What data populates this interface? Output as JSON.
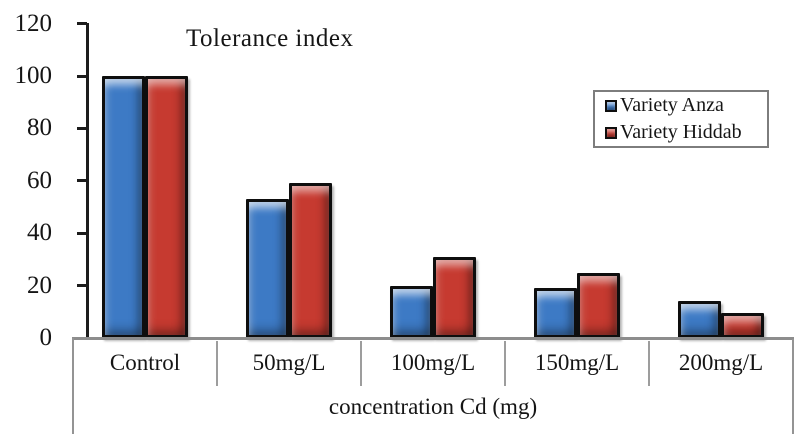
{
  "chart_data": {
    "type": "bar",
    "title": "Tolerance index",
    "xlabel": "concentration Cd (mg)",
    "ylabel": "",
    "categories": [
      "Control",
      "50mg/L",
      "100mg/L",
      "150mg/L",
      "200mg/L"
    ],
    "series": [
      {
        "name": "Variety Anza",
        "color": "#3d7ac5",
        "values": [
          100,
          53,
          20,
          19,
          14
        ]
      },
      {
        "name": "Variety Hiddab",
        "color": "#c63a30",
        "values": [
          100,
          59,
          31,
          25,
          9.5
        ]
      }
    ],
    "ylim": [
      0,
      120
    ],
    "yticks": [
      0,
      20,
      40,
      60,
      80,
      100,
      120
    ],
    "grid": false,
    "legend_position": "upper right",
    "bar_outline_color": "#0e0e0e",
    "axis_color": "#1c1c1c",
    "table_border_color": "#949494"
  }
}
